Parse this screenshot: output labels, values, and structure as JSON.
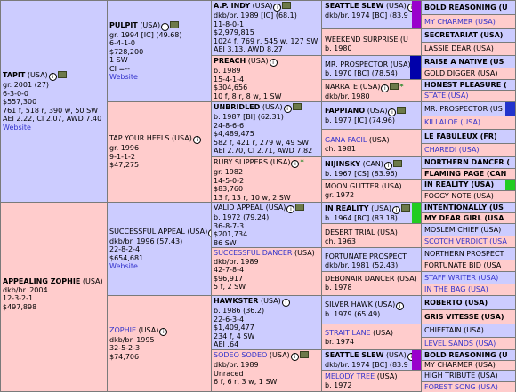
{
  "colors": {
    "male": "#ccccff",
    "female": "#ffcccc",
    "link": "#3333cc",
    "purple": "#9900cc",
    "navy": "#0000aa",
    "blue": "#2233cc",
    "green": "#22cc22"
  },
  "icons": {
    "info": "info-icon",
    "media": "media-icon",
    "photo_mark": "*"
  },
  "gen1": [
    {
      "name": "TAPIT",
      "country": "(USA)",
      "lines": [
        "gr. 2001 (27)",
        "6-3-0-0",
        "$557,300",
        "761 f, 518 r, 390 w, 50 SW",
        "AEI 2.22, CI 2.07, AWD 7.40"
      ],
      "website": "Website"
    },
    {
      "name": "APPEALING ZOPHIE",
      "country": "(USA)",
      "lines": [
        "dkb/br. 2004",
        "12-3-2-1",
        "$497,898"
      ]
    }
  ],
  "gen2": [
    {
      "name": "PULPIT",
      "country": "(USA)",
      "lines": [
        "gr. 1994 [IC] (49.68)",
        "6-4-1-0",
        "$728,200",
        "1 SW",
        "CI =--"
      ],
      "website": "Website"
    },
    {
      "name": "TAP YOUR HEELS",
      "country": "(USA)",
      "lines": [
        "gr. 1996",
        "9-1-1-2",
        "$47,275"
      ]
    },
    {
      "name": "SUCCESSFUL APPEAL",
      "country": "(USA)",
      "lines": [
        "dkb/br. 1996 (57.43)",
        "22-8-2-4",
        "$654,681"
      ],
      "website": "Website"
    },
    {
      "name": "ZOPHIE",
      "country": "(USA)",
      "lines": [
        "dkb/br. 1995",
        "32-5-2-3",
        "$74,706"
      ]
    }
  ],
  "gen3": [
    {
      "name": "A.P. INDY",
      "country": "(USA)",
      "lines": [
        "dkb/br. 1989 [IC] (68.1)",
        "11-8-0-1",
        "$2,979,815",
        "1024 f, 769 r, 545 w, 127 SW",
        "AEI 3.13, AWD 8.27"
      ]
    },
    {
      "name": "PREACH",
      "country": "(USA)",
      "lines": [
        "b. 1989",
        "15-4-1-4",
        "$304,656",
        "10 f, 8 r, 8 w, 1 SW"
      ]
    },
    {
      "name": "UNBRIDLED",
      "country": "(USA)",
      "lines": [
        "b. 1987 [BI] (62.31)",
        "24-8-6-6",
        "$4,489,475",
        "582 f, 421 r, 279 w, 49 SW",
        "AEI 2.70, CI 2.71, AWD 7.82"
      ]
    },
    {
      "name": "RUBY SLIPPERS",
      "country": "(USA)",
      "lines": [
        "gr. 1982",
        "14-5-0-2",
        "$83,760",
        "13 f, 13 r, 10 w, 2 SW"
      ]
    },
    {
      "name": "VALID APPEAL",
      "country": "(USA)",
      "lines": [
        "b. 1972 (79.24)",
        "36-8-7-3",
        "$201,734",
        "86 SW"
      ]
    },
    {
      "name": "SUCCESSFUL DANCER",
      "country": "(USA)",
      "lines": [
        "dkb/br. 1989",
        "42-7-8-4",
        "$96,917",
        "5 f, 2 SW"
      ]
    },
    {
      "name": "HAWKSTER",
      "country": "(USA)",
      "lines": [
        "b. 1986 (36.2)",
        "22-6-3-4",
        "$1,409,477",
        "234 f, 4 SW",
        "AEI .64"
      ]
    },
    {
      "name": "SODEO SODEO",
      "country": "(USA)",
      "lines": [
        "dkb/br. 1989",
        "Unraced",
        "6 f, 6 r, 3 w, 1 SW"
      ]
    }
  ],
  "gen4": [
    {
      "name": "SEATTLE SLEW",
      "country": "(USA)",
      "lines": [
        "dkb/br. 1974 [BC] (83.9"
      ]
    },
    {
      "name": "WEEKEND SURPRISE",
      "country": "(U",
      "lines": [
        "b. 1980"
      ]
    },
    {
      "name": "MR. PROSPECTOR",
      "country": "(USA)",
      "lines": [
        "b. 1970 [BC] (78.54)"
      ]
    },
    {
      "name": "NARRATE",
      "country": "(USA)",
      "lines": [
        "dkb/br. 1980"
      ]
    },
    {
      "name": "FAPPIANO",
      "country": "(USA)",
      "lines": [
        "b. 1977 [IC] (74.96)"
      ]
    },
    {
      "name": "GANA FACIL",
      "country": "(USA)",
      "lines": [
        "ch. 1981"
      ]
    },
    {
      "name": "NIJINSKY",
      "country": "(CAN)",
      "lines": [
        "b. 1967 [CS] (83.96)"
      ]
    },
    {
      "name": "MOON GLITTER",
      "country": "(USA)",
      "lines": [
        "gr. 1972"
      ]
    },
    {
      "name": "IN REALITY",
      "country": "(USA)",
      "lines": [
        "b. 1964 [BC] (83.18)"
      ]
    },
    {
      "name": "DESERT TRIAL",
      "country": "(USA)",
      "lines": [
        "ch. 1963"
      ]
    },
    {
      "name": "FORTUNATE PROSPECT",
      "country": "",
      "lines": [
        "dkb/br. 1981 (52.43)"
      ]
    },
    {
      "name": "DEBONAIR DANCER",
      "country": "(USA)",
      "lines": [
        "b. 1978"
      ]
    },
    {
      "name": "SILVER HAWK",
      "country": "(USA)",
      "lines": [
        "b. 1979 (65.49)"
      ]
    },
    {
      "name": "STRAIT LANE",
      "country": "(USA)",
      "lines": [
        "br. 1974"
      ]
    },
    {
      "name": "SEATTLE SLEW",
      "country": "(USA)",
      "lines": [
        "dkb/br. 1974 [BC] (83.9"
      ]
    },
    {
      "name": "MELODY TREE",
      "country": "(USA)",
      "lines": [
        "b. 1972"
      ]
    }
  ],
  "gen5": [
    "BOLD REASONING (U",
    "MY CHARMER (USA)",
    "SECRETARIAT (USA)",
    "LASSIE DEAR (USA)",
    "RAISE A NATIVE (US",
    "GOLD DIGGER (USA)",
    "HONEST PLEASURE (",
    "STATE (USA)",
    "MR. PROSPECTOR (US",
    "KILLALOE (USA)",
    "LE FABULEUX (FR)",
    "CHAREDI (USA)",
    "NORTHERN DANCER (",
    "FLAMING PAGE (CAN",
    "IN REALITY (USA)",
    "FOGGY NOTE (USA)",
    "INTENTIONALLY (US",
    "MY DEAR GIRL (USA",
    "MOSLEM CHIEF (USA)",
    "SCOTCH VERDICT (USA",
    "NORTHERN PROSPECT",
    "FORTUNATE BID (USA",
    "STAFF WRITER (USA)",
    "IN THE BAG (USA)",
    "ROBERTO (USA)",
    "GRIS VITESSE (USA)",
    "CHIEFTAIN (USA)",
    "LEVEL SANDS (USA)",
    "BOLD REASONING (U",
    "MY CHARMER (USA)",
    "HIGH TRIBUTE (USA)",
    "FOREST SONG (USA)"
  ]
}
